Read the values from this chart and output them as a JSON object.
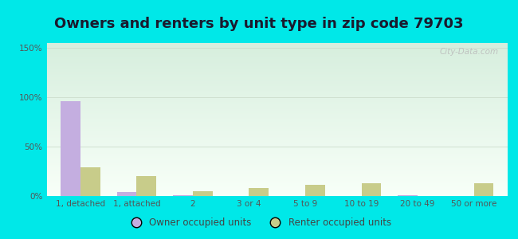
{
  "title": "Owners and renters by unit type in zip code 79703",
  "categories": [
    "1, detached",
    "1, attached",
    "2",
    "3 or 4",
    "5 to 9",
    "10 to 19",
    "20 to 49",
    "50 or more"
  ],
  "owner_values": [
    96,
    4,
    1,
    0,
    0,
    0,
    1,
    0
  ],
  "renter_values": [
    29,
    20,
    5,
    8,
    11,
    13,
    0,
    13
  ],
  "owner_color": "#c4aee0",
  "renter_color": "#c8cc8a",
  "background_outer": "#00e8e8",
  "background_inner_top": "#d6eedd",
  "background_inner_bottom": "#f8fff8",
  "yticks": [
    0,
    50,
    100,
    150
  ],
  "ylim": [
    0,
    155
  ],
  "bar_width": 0.35,
  "title_fontsize": 13,
  "tick_fontsize": 7.5,
  "legend_fontsize": 8.5,
  "watermark": "City-Data.com"
}
